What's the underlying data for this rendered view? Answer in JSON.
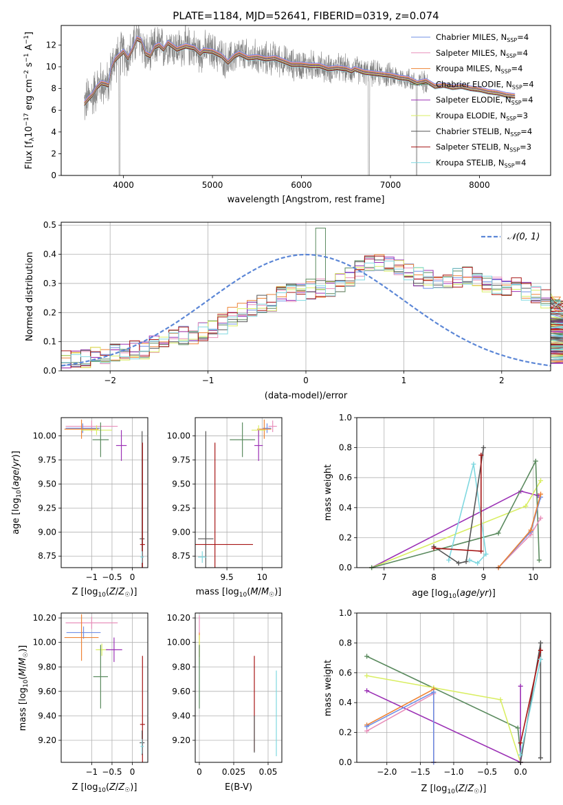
{
  "figure": {
    "title": "PLATE=1184, MJD=52641, FIBERID=0319, z=0.074"
  },
  "colors": {
    "Chabrier MILES": "#6f8fe6",
    "Salpeter MILES": "#e88fba",
    "Kroupa MILES": "#ee8233",
    "Chabrier ELODIE": "#5a8a5e",
    "Salpeter ELODIE": "#9b30b5",
    "Kroupa ELODIE": "#d9ee62",
    "Chabrier STELIB": "#555555",
    "Salpeter STELIB": "#a61414",
    "Kroupa STELIB": "#7fd8e0",
    "data": "#808080",
    "normal": "#5b86d6"
  },
  "chart_data": [
    {
      "id": "spectrum",
      "type": "line",
      "title": "PLATE=1184, MJD=52641, FIBERID=0319, z=0.074",
      "xlabel": "wavelength [Angstrom, rest frame]",
      "ylabel": "Flux [f_λ 10^-17 erg cm^-2 s^-1 A^-1]",
      "xlim": [
        3300,
        8800
      ],
      "ylim": [
        0,
        13.8
      ],
      "xticks": [
        4000,
        5000,
        6000,
        7000,
        8000
      ],
      "yticks": [
        0,
        2,
        4,
        6,
        8,
        10,
        12
      ],
      "legend_position": "top-right",
      "grid": false,
      "legend": [
        {
          "label": "Chabrier MILES, N_SSP=4",
          "main": "Chabrier MILES, N",
          "sub": "SSP",
          "tail": "=4",
          "series": "Chabrier MILES"
        },
        {
          "label": "Salpeter MILES, N_SSP=4",
          "main": "Salpeter MILES, N",
          "sub": "SSP",
          "tail": "=4",
          "series": "Salpeter MILES"
        },
        {
          "label": "Kroupa MILES, N_SSP=4",
          "main": "Kroupa MILES, N",
          "sub": "SSP",
          "tail": "=4",
          "series": "Kroupa MILES"
        },
        {
          "label": "Chabrier ELODIE, N_SSP=4",
          "main": "Chabrier ELODIE, N",
          "sub": "SSP",
          "tail": "=4",
          "series": "Chabrier ELODIE"
        },
        {
          "label": "Salpeter ELODIE, N_SSP=4",
          "main": "Salpeter ELODIE, N",
          "sub": "SSP",
          "tail": "=4",
          "series": "Salpeter ELODIE"
        },
        {
          "label": "Kroupa ELODIE, N_SSP=3",
          "main": "Kroupa ELODIE, N",
          "sub": "SSP",
          "tail": "=3",
          "series": "Kroupa ELODIE"
        },
        {
          "label": "Chabrier STELIB, N_SSP=4",
          "main": "Chabrier STELIB, N",
          "sub": "SSP",
          "tail": "=4",
          "series": "Chabrier STELIB"
        },
        {
          "label": "Salpeter STELIB, N_SSP=3",
          "main": "Salpeter STELIB, N",
          "sub": "SSP",
          "tail": "=3",
          "series": "Salpeter STELIB"
        },
        {
          "label": "Kroupa STELIB, N_SSP=4",
          "main": "Kroupa STELIB, N",
          "sub": "SSP",
          "tail": "=4",
          "series": "Kroupa STELIB"
        }
      ],
      "model_continuum": {
        "x": [
          3560,
          3600,
          3650,
          3700,
          3750,
          3800,
          3830,
          3860,
          3900,
          3950,
          4000,
          4050,
          4100,
          4150,
          4200,
          4250,
          4300,
          4350,
          4400,
          4450,
          4500,
          4600,
          4700,
          4800,
          4861,
          4900,
          5000,
          5100,
          5175,
          5250,
          5300,
          5400,
          5500,
          5600,
          5700,
          5800,
          5890,
          6000,
          6100,
          6200,
          6300,
          6400,
          6500,
          6563,
          6600,
          6700,
          6800,
          6900,
          7000,
          7100,
          7200,
          7300,
          7400,
          7500,
          7600,
          7700,
          7800,
          7900,
          8000,
          8100,
          8200,
          8300,
          8400
        ],
        "y": [
          6.6,
          7.0,
          7.4,
          8.1,
          8.5,
          8.4,
          8.3,
          9.8,
          10.6,
          11.0,
          11.4,
          10.8,
          11.6,
          12.6,
          12.4,
          11.2,
          11.0,
          11.8,
          12.0,
          11.6,
          12.2,
          11.6,
          11.9,
          11.7,
          11.2,
          11.5,
          11.4,
          11.0,
          10.4,
          11.0,
          11.2,
          10.8,
          10.9,
          10.7,
          10.8,
          10.5,
          10.2,
          10.2,
          10.1,
          10.1,
          9.8,
          9.9,
          9.8,
          9.6,
          9.8,
          9.5,
          9.4,
          9.3,
          9.2,
          9.0,
          8.9,
          8.5,
          8.7,
          8.2,
          8.3,
          8.1,
          8.2,
          8.0,
          7.9,
          7.7,
          7.6,
          7.4,
          7.3
        ]
      },
      "data_noise": {
        "x_start": 3560,
        "x_end": 7420,
        "step": 2.5,
        "amplitude_blue": 2.6,
        "amplitude_red": 1.2,
        "dropouts": [
          [
            3950,
            3962
          ],
          [
            6752,
            6765
          ],
          [
            7290,
            7300
          ]
        ]
      }
    },
    {
      "id": "residuals",
      "type": "line",
      "xlabel": "(data-model)/error",
      "ylabel": "Normed distribution",
      "xlim": [
        -2.5,
        2.5
      ],
      "ylim": [
        0,
        0.51
      ],
      "xticks": [
        -2,
        -1,
        0,
        1,
        2
      ],
      "yticks": [
        0.0,
        0.1,
        0.2,
        0.3,
        0.4,
        0.5
      ],
      "grid": true,
      "legend": [
        {
          "label": "N(0,1)",
          "math": "𝒩(0, 1)"
        }
      ],
      "legend_position": "top-right",
      "bin_width": 0.1,
      "bin_start": -2.5,
      "histogram_base": [
        0.035,
        0.04,
        0.045,
        0.05,
        0.055,
        0.06,
        0.065,
        0.07,
        0.075,
        0.085,
        0.095,
        0.11,
        0.12,
        0.125,
        0.135,
        0.145,
        0.16,
        0.185,
        0.2,
        0.215,
        0.23,
        0.24,
        0.255,
        0.265,
        0.275,
        0.28,
        0.285,
        0.29,
        0.3,
        0.32,
        0.345,
        0.365,
        0.375,
        0.375,
        0.36,
        0.34,
        0.325,
        0.31,
        0.305,
        0.31,
        0.32,
        0.325,
        0.315,
        0.3,
        0.295,
        0.29,
        0.285,
        0.275,
        0.26,
        0.25,
        0.24,
        0.225,
        0.21,
        0.195,
        0.175,
        0.16,
        0.14,
        0.125,
        0.11,
        0.1,
        0.09,
        0.08,
        0.07,
        0.06,
        0.055,
        0.05
      ],
      "histogram_jitter": 0.035,
      "highlights": [
        {
          "x": 0.15,
          "y": 0.49,
          "series": "Chabrier ELODIE"
        }
      ]
    },
    {
      "id": "age_vs_Z",
      "type": "scatter",
      "xlabel": "Z [log10(Z/Z☉)]",
      "ylabel": "age [log10(age/yr)]",
      "xlim": [
        -1.75,
        0.38
      ],
      "ylim": [
        8.63,
        10.19
      ],
      "xticks": [
        -1,
        -0.5,
        0
      ],
      "yticks": [
        8.75,
        9.0,
        9.25,
        9.5,
        9.75,
        10.0
      ],
      "grid": true,
      "points": [
        {
          "series": "Salpeter MILES",
          "x": -1.0,
          "y": 10.1,
          "xerr": 0.64,
          "yerr": 0.06
        },
        {
          "series": "Chabrier MILES",
          "x": -1.22,
          "y": 10.08,
          "xerr": 0.42,
          "yerr": 0.05
        },
        {
          "series": "Kroupa MILES",
          "x": -1.25,
          "y": 10.07,
          "xerr": 0.42,
          "yerr": 0.1
        },
        {
          "series": "Kroupa ELODIE",
          "x": -0.88,
          "y": 10.06,
          "xerr": 0.38,
          "yerr": 0.05
        },
        {
          "series": "Chabrier ELODIE",
          "x": -0.78,
          "y": 9.96,
          "xerr": 0.2,
          "yerr": 0.18
        },
        {
          "series": "Salpeter ELODIE",
          "x": -0.27,
          "y": 9.9,
          "xerr": 0.13,
          "yerr": 0.16
        },
        {
          "series": "Chabrier STELIB",
          "x": 0.24,
          "y": 8.93,
          "xerr": 0.06,
          "yerr": 1.12
        },
        {
          "series": "Salpeter STELIB",
          "x": 0.25,
          "y": 8.87,
          "xerr": 0.06,
          "yerr": 1.06
        },
        {
          "series": "Kroupa STELIB",
          "x": 0.24,
          "y": 8.74,
          "xerr": 0.04,
          "yerr": 0.06
        }
      ]
    },
    {
      "id": "age_vs_mass",
      "type": "scatter",
      "xlabel": "mass [log10(M/M☉)]",
      "xlim": [
        9.05,
        10.28
      ],
      "ylim": [
        8.63,
        10.19
      ],
      "xticks": [
        9.5,
        10.0
      ],
      "yticks": [
        8.75,
        9.0,
        9.25,
        9.5,
        9.75,
        10.0
      ],
      "grid": true,
      "points": [
        {
          "series": "Salpeter MILES",
          "x": 10.15,
          "y": 10.1,
          "xerr": 0.06,
          "yerr": 0.06
        },
        {
          "series": "Chabrier MILES",
          "x": 10.07,
          "y": 10.08,
          "xerr": 0.06,
          "yerr": 0.05
        },
        {
          "series": "Kroupa MILES",
          "x": 10.03,
          "y": 10.07,
          "xerr": 0.1,
          "yerr": 0.1
        },
        {
          "series": "Kroupa ELODIE",
          "x": 9.95,
          "y": 10.06,
          "xerr": 0.1,
          "yerr": 0.05
        },
        {
          "series": "Chabrier ELODIE",
          "x": 9.72,
          "y": 9.96,
          "xerr": 0.18,
          "yerr": 0.18
        },
        {
          "series": "Salpeter ELODIE",
          "x": 9.95,
          "y": 9.9,
          "xerr": 0.06,
          "yerr": 0.16
        },
        {
          "series": "Chabrier STELIB",
          "x": 9.2,
          "y": 8.93,
          "xerr": 0.11,
          "yerr": 1.12
        },
        {
          "series": "Salpeter STELIB",
          "x": 9.33,
          "y": 8.87,
          "xerr": 0.54,
          "yerr": 1.06
        },
        {
          "series": "Kroupa STELIB",
          "x": 9.15,
          "y": 8.74,
          "xerr": 0.06,
          "yerr": 0.06
        }
      ]
    },
    {
      "id": "weight_vs_age",
      "type": "line",
      "xlabel": "age [log10(age/yr)]",
      "ylabel": "mass weight",
      "xlim": [
        6.45,
        10.35
      ],
      "ylim": [
        0,
        1
      ],
      "xticks": [
        7,
        8,
        9,
        10
      ],
      "yticks": [
        0.0,
        0.2,
        0.4,
        0.6,
        0.8,
        1.0
      ],
      "grid": true,
      "series": [
        {
          "name": "Salpeter ELODIE",
          "x": [
            6.75,
            9.75,
            10.1
          ],
          "y": [
            0.0,
            0.51,
            0.48
          ]
        },
        {
          "name": "Kroupa ELODIE",
          "x": [
            6.75,
            9.85,
            10.15
          ],
          "y": [
            0.0,
            0.41,
            0.58
          ]
        },
        {
          "name": "Chabrier ELODIE",
          "x": [
            6.75,
            9.3,
            10.05,
            10.12
          ],
          "y": [
            0.0,
            0.23,
            0.71,
            0.05
          ]
        },
        {
          "name": "Kroupa STELIB",
          "x": [
            8.3,
            8.8,
            9.05,
            8.88,
            8.72
          ],
          "y": [
            0.05,
            0.69,
            0.09,
            0.03,
            0.05
          ]
        },
        {
          "name": "Chabrier STELIB",
          "x": [
            8.0,
            8.5,
            8.65,
            9.0
          ],
          "y": [
            0.14,
            0.03,
            0.04,
            0.8
          ]
        },
        {
          "name": "Salpeter STELIB",
          "x": [
            8.0,
            8.95,
            8.95
          ],
          "y": [
            0.13,
            0.11,
            0.75
          ]
        },
        {
          "name": "Salpeter MILES",
          "x": [
            9.3,
            9.95,
            10.15
          ],
          "y": [
            0.0,
            0.22,
            0.33
          ]
        },
        {
          "name": "Chabrier MILES",
          "x": [
            9.3,
            9.95,
            10.15
          ],
          "y": [
            0.0,
            0.24,
            0.47
          ]
        },
        {
          "name": "Kroupa MILES",
          "x": [
            9.3,
            9.95,
            10.15
          ],
          "y": [
            0.0,
            0.25,
            0.49
          ]
        }
      ]
    },
    {
      "id": "mass_vs_Z",
      "type": "scatter",
      "xlabel": "Z [log10(Z/Z☉)]",
      "ylabel": "mass [log10(M/M☉)]",
      "xlim": [
        -1.75,
        0.38
      ],
      "ylim": [
        9.02,
        10.24
      ],
      "xticks": [
        -1,
        -0.5,
        0
      ],
      "yticks": [
        9.2,
        9.4,
        9.6,
        9.8,
        10.0,
        10.2
      ],
      "grid": true,
      "points": [
        {
          "series": "Salpeter MILES",
          "x": -1.0,
          "y": 10.16,
          "xerr": 0.64,
          "yerr": 0.05
        },
        {
          "series": "Chabrier MILES",
          "x": -1.2,
          "y": 10.08,
          "xerr": 0.42,
          "yerr": 0.05
        },
        {
          "series": "Kroupa MILES",
          "x": -1.25,
          "y": 10.04,
          "xerr": 0.42,
          "yerr": 0.19
        },
        {
          "series": "Kroupa ELODIE",
          "x": -0.75,
          "y": 9.94,
          "xerr": 0.15,
          "yerr": 0.05
        },
        {
          "series": "Salpeter ELODIE",
          "x": -0.45,
          "y": 9.94,
          "xerr": 0.2,
          "yerr": 0.1
        },
        {
          "series": "Chabrier ELODIE",
          "x": -0.78,
          "y": 9.72,
          "xerr": 0.18,
          "yerr": 0.26
        },
        {
          "series": "Salpeter STELIB",
          "x": 0.25,
          "y": 9.33,
          "xerr": 0.06,
          "yerr": 0.56
        },
        {
          "series": "Chabrier STELIB",
          "x": 0.24,
          "y": 9.18,
          "xerr": 0.06,
          "yerr": 0.1
        },
        {
          "series": "Kroupa STELIB",
          "x": 0.24,
          "y": 9.15,
          "xerr": 0.04,
          "yerr": 0.06
        }
      ]
    },
    {
      "id": "mass_vs_EBV",
      "type": "scatter",
      "xlabel": "E(B-V)",
      "xlim": [
        -0.003,
        0.06
      ],
      "ylim": [
        9.02,
        10.24
      ],
      "xticks": [
        0.0,
        0.025,
        0.05
      ],
      "yticks": [
        9.2,
        9.4,
        9.6,
        9.8,
        10.0,
        10.2
      ],
      "grid": true,
      "points": [
        {
          "series": "Salpeter MILES",
          "x": 0.0,
          "y": 10.12,
          "xerr": 0.0,
          "yerr": 0.1
        },
        {
          "series": "Kroupa MILES",
          "x": 0.0,
          "y": 9.98,
          "xerr": 0.0,
          "yerr": 0.1
        },
        {
          "series": "Kroupa ELODIE",
          "x": 0.0,
          "y": 9.94,
          "xerr": 0.0,
          "yerr": 0.12
        },
        {
          "series": "Chabrier ELODIE",
          "x": 0.0,
          "y": 9.72,
          "xerr": 0.0,
          "yerr": 0.26
        },
        {
          "series": "Salpeter STELIB",
          "x": 0.04,
          "y": 9.5,
          "xerr": 0.0,
          "yerr": 0.39
        },
        {
          "series": "Chabrier STELIB",
          "x": 0.04,
          "y": 9.25,
          "xerr": 0.0,
          "yerr": 0.15
        },
        {
          "series": "Kroupa STELIB",
          "x": 0.056,
          "y": 9.42,
          "xerr": 0.0,
          "yerr": 0.35
        }
      ]
    },
    {
      "id": "weight_vs_Z",
      "type": "line",
      "xlabel": "Z [log10(Z/Z☉)]",
      "ylabel": "mass weight",
      "xlim": [
        -2.45,
        0.45
      ],
      "ylim": [
        0,
        1
      ],
      "xticks": [
        -2.0,
        -1.5,
        -1.0,
        -0.5,
        0.0
      ],
      "yticks": [
        0.0,
        0.2,
        0.4,
        0.6,
        0.8,
        1.0
      ],
      "grid": true,
      "series": [
        {
          "name": "Chabrier ELODIE",
          "x": [
            -2.3,
            -0.04,
            0.0
          ],
          "y": [
            0.71,
            0.23,
            0.05
          ]
        },
        {
          "name": "Kroupa ELODIE",
          "x": [
            -2.3,
            -1.3,
            -0.3,
            0.0
          ],
          "y": [
            0.58,
            0.5,
            0.42,
            0.0
          ]
        },
        {
          "name": "Salpeter ELODIE",
          "x": [
            -2.3,
            0.0,
            0.0
          ],
          "y": [
            0.48,
            0.0,
            0.51
          ]
        },
        {
          "name": "Salpeter MILES",
          "x": [
            -2.3,
            -1.3,
            -1.3
          ],
          "y": [
            0.21,
            0.46,
            0.0
          ]
        },
        {
          "name": "Kroupa MILES",
          "x": [
            -2.3,
            -1.3,
            -1.3
          ],
          "y": [
            0.25,
            0.49,
            0.0
          ]
        },
        {
          "name": "Chabrier MILES",
          "x": [
            -2.3,
            -1.3,
            -1.3
          ],
          "y": [
            0.24,
            0.47,
            0.0
          ]
        },
        {
          "name": "Chabrier STELIB",
          "x": [
            0.0,
            0.3,
            0.3
          ],
          "y": [
            0.0,
            0.8,
            0.03
          ]
        },
        {
          "name": "Salpeter STELIB",
          "x": [
            0.0,
            0.3
          ],
          "y": [
            0.13,
            0.75
          ]
        },
        {
          "name": "Kroupa STELIB",
          "x": [
            0.0,
            0.3
          ],
          "y": [
            0.05,
            0.69
          ]
        }
      ]
    }
  ]
}
